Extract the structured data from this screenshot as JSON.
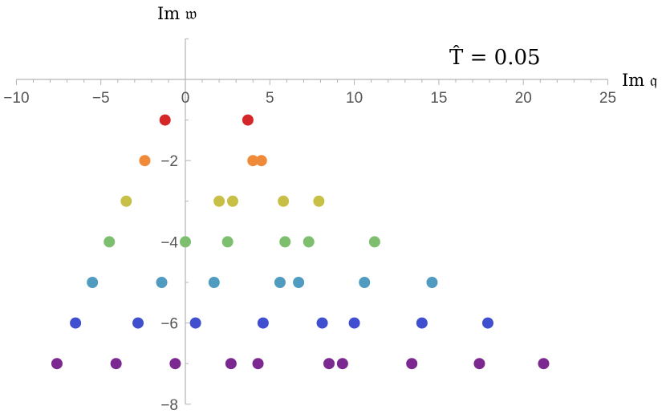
{
  "chart_data": {
    "type": "scatter",
    "title": "",
    "annotation": "T̂ = 0.05",
    "xlabel": "Im 𝔮",
    "ylabel": "Im 𝔴",
    "xlim": [
      -10,
      25
    ],
    "ylim": [
      -8,
      1
    ],
    "xticks": [
      -10,
      -5,
      0,
      5,
      10,
      15,
      20,
      25
    ],
    "yticks": [
      -2,
      -4,
      -6,
      -8
    ],
    "grid": false,
    "legend": "none",
    "series": [
      {
        "color": "#d62728",
        "points": [
          [
            -1.2,
            -1
          ],
          [
            3.7,
            -1
          ]
        ]
      },
      {
        "color": "#ef8a3a",
        "points": [
          [
            -2.4,
            -2
          ],
          [
            4.0,
            -2
          ],
          [
            4.5,
            -2
          ]
        ]
      },
      {
        "color": "#c7bf46",
        "points": [
          [
            -3.5,
            -3
          ],
          [
            2.0,
            -3
          ],
          [
            2.8,
            -3
          ],
          [
            5.8,
            -3
          ],
          [
            7.9,
            -3
          ]
        ]
      },
      {
        "color": "#7dbf6e",
        "points": [
          [
            -4.5,
            -4
          ],
          [
            0.0,
            -4
          ],
          [
            2.5,
            -4
          ],
          [
            5.9,
            -4
          ],
          [
            7.3,
            -4
          ],
          [
            11.2,
            -4
          ]
        ]
      },
      {
        "color": "#4f9cc0",
        "points": [
          [
            -5.5,
            -5
          ],
          [
            -1.4,
            -5
          ],
          [
            1.7,
            -5
          ],
          [
            5.6,
            -5
          ],
          [
            6.7,
            -5
          ],
          [
            10.6,
            -5
          ],
          [
            14.6,
            -5
          ]
        ]
      },
      {
        "color": "#3f4fd0",
        "points": [
          [
            -6.5,
            -6
          ],
          [
            -2.8,
            -6
          ],
          [
            0.6,
            -6
          ],
          [
            4.6,
            -6
          ],
          [
            8.1,
            -6
          ],
          [
            10.0,
            -6
          ],
          [
            14.0,
            -6
          ],
          [
            17.9,
            -6
          ]
        ]
      },
      {
        "color": "#7b2890",
        "points": [
          [
            -7.6,
            -7
          ],
          [
            -4.1,
            -7
          ],
          [
            -0.6,
            -7
          ],
          [
            2.7,
            -7
          ],
          [
            4.3,
            -7
          ],
          [
            8.5,
            -7
          ],
          [
            9.3,
            -7
          ],
          [
            13.4,
            -7
          ],
          [
            17.4,
            -7
          ],
          [
            21.2,
            -7
          ]
        ]
      }
    ]
  }
}
